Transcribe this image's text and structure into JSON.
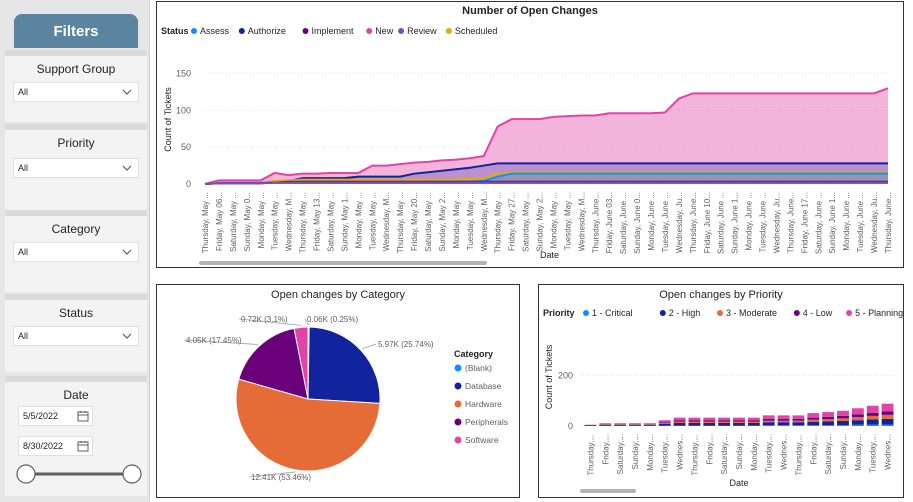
{
  "filters": {
    "header": "Filters",
    "support_group": {
      "label": "Support Group",
      "value": "All"
    },
    "priority": {
      "label": "Priority",
      "value": "All"
    },
    "category": {
      "label": "Category",
      "value": "All"
    },
    "status": {
      "label": "Status",
      "value": "All"
    },
    "date": {
      "label": "Date",
      "start": "5/5/2022",
      "end": "8/30/2022",
      "range_fraction": [
        0.0,
        1.0
      ]
    }
  },
  "open_changes": {
    "chart_data": {
      "type": "area",
      "title": "Number of Open Changes",
      "xlabel": "Date",
      "ylabel": "Count of Tickets",
      "legend_title": "Status",
      "legend_position": "top-left",
      "yticks": [
        "0",
        "50",
        "100",
        "150"
      ],
      "ylim": [
        0,
        175
      ],
      "x_tick_labels": [
        "Thursday, May ...",
        "Friday, May 06...",
        "Saturday, May ...",
        "Sunday, May 0...",
        "Monday, May ...",
        "Tuesday, May ...",
        "Wednesday, M...",
        "Thursday, May ...",
        "Friday, May 13...",
        "Saturday, May ...",
        "Sunday, May 1...",
        "Monday, May ...",
        "Tuesday, May ...",
        "Wednesday, M...",
        "Thursday, May ...",
        "Friday, May 20...",
        "Saturday, May ...",
        "Sunday, May 2...",
        "Monday, May ...",
        "Tuesday, May ...",
        "Wednesday, M...",
        "Thursday, May ...",
        "Friday, May 27...",
        "Saturday, May ...",
        "Sunday, May 2...",
        "Monday, May ...",
        "Tuesday, May ...",
        "Wednesday, M...",
        "Thursday, June...",
        "Friday, June 03...",
        "Saturday, June ...",
        "Sunday, June 0...",
        "Monday, June ...",
        "Tuesday, June ...",
        "Wednesday, Ju...",
        "Thursday, June...",
        "Friday, June 10...",
        "Saturday, June ...",
        "Sunday, June 1...",
        "Monday, June ...",
        "Tuesday, June ...",
        "Wednesday, Ju...",
        "Thursday, June...",
        "Friday, June 17...",
        "Saturday, June ...",
        "Sunday, June 1...",
        "Monday, June ...",
        "Tuesday, June ...",
        "Wednesday, Ju...",
        "Thursday, June..."
      ],
      "series": [
        {
          "name": "Assess",
          "color": "#118dff",
          "values": [
            0,
            1,
            1,
            1,
            1,
            2,
            2,
            2,
            2,
            2,
            2,
            2,
            2,
            2,
            2,
            2,
            3,
            3,
            3,
            3,
            4,
            10,
            14,
            14,
            14,
            14,
            14,
            14,
            14,
            14,
            14,
            14,
            14,
            14,
            14,
            14,
            14,
            14,
            14,
            14,
            14,
            14,
            14,
            14,
            14,
            14,
            14,
            14,
            14,
            14
          ]
        },
        {
          "name": "Authorize",
          "color": "#12239e",
          "values": [
            0,
            2,
            2,
            2,
            2,
            3,
            4,
            8,
            8,
            8,
            8,
            10,
            10,
            10,
            10,
            14,
            16,
            18,
            20,
            22,
            25,
            28,
            28,
            28,
            28,
            28,
            28,
            28,
            28,
            28,
            28,
            28,
            28,
            28,
            28,
            28,
            28,
            28,
            28,
            28,
            28,
            28,
            28,
            28,
            28,
            28,
            28,
            28,
            28,
            28
          ]
        },
        {
          "name": "Implement",
          "color": "#6b007b",
          "values": [
            0,
            1,
            1,
            1,
            1,
            2,
            3,
            3,
            3,
            3,
            3,
            3,
            3,
            3,
            3,
            3,
            3,
            3,
            3,
            3,
            3,
            3,
            3,
            3,
            3,
            3,
            3,
            3,
            3,
            3,
            3,
            3,
            3,
            3,
            3,
            3,
            3,
            3,
            3,
            3,
            3,
            3,
            3,
            3,
            3,
            3,
            3,
            3,
            3,
            3
          ]
        },
        {
          "name": "New",
          "color": "#e044a7",
          "values": [
            0,
            5,
            5,
            5,
            5,
            15,
            12,
            14,
            14,
            15,
            15,
            15,
            25,
            25,
            27,
            29,
            30,
            32,
            33,
            35,
            38,
            78,
            88,
            88,
            88,
            91,
            92,
            93,
            93,
            96,
            96,
            96,
            96,
            97,
            116,
            123,
            123,
            123,
            123,
            123,
            123,
            123,
            123,
            123,
            123,
            123,
            123,
            123,
            123,
            130
          ]
        },
        {
          "name": "Review",
          "color": "#744ec2",
          "values": [
            0,
            1,
            1,
            1,
            1,
            2,
            2,
            2,
            2,
            2,
            2,
            2,
            2,
            2,
            2,
            2,
            2,
            2,
            2,
            2,
            2,
            2,
            2,
            2,
            2,
            2,
            2,
            2,
            2,
            2,
            2,
            2,
            2,
            2,
            2,
            2,
            2,
            2,
            2,
            2,
            2,
            2,
            2,
            2,
            2,
            2,
            2,
            2,
            2,
            2
          ]
        },
        {
          "name": "Scheduled",
          "color": "#d9b300",
          "values": [
            0,
            2,
            2,
            2,
            2,
            4,
            5,
            6,
            6,
            6,
            6,
            6,
            6,
            6,
            6,
            6,
            6,
            6,
            6,
            7,
            8,
            14,
            15,
            15,
            15,
            15,
            15,
            15,
            15,
            15,
            15,
            15,
            15,
            15,
            15,
            15,
            15,
            15,
            15,
            15,
            15,
            15,
            15,
            15,
            15,
            15,
            15,
            15,
            15,
            15
          ]
        }
      ]
    }
  },
  "category_pie": {
    "chart_data": {
      "type": "pie",
      "title": "Open changes by Category",
      "legend_title": "Category",
      "legend_position": "right",
      "slices": [
        {
          "name": "(Blank)",
          "value": 0.06,
          "label": "0.06K (0.25%)",
          "color": "#118dff"
        },
        {
          "name": "Database",
          "value": 5.97,
          "label": "5.97K (25.74%)",
          "color": "#12239e"
        },
        {
          "name": "Hardware",
          "value": 12.41,
          "label": "12.41K (53.46%)",
          "color": "#e66c37"
        },
        {
          "name": "Peripherals",
          "value": 4.05,
          "label": "4.05K (17.45%)",
          "color": "#6b007b"
        },
        {
          "name": "Software",
          "value": 0.72,
          "label": "0.72K (3.1%)",
          "color": "#e044a7"
        }
      ]
    }
  },
  "priority_bar": {
    "chart_data": {
      "type": "bar",
      "stacked": true,
      "title": "Open changes by Priority",
      "xlabel": "Date",
      "ylabel": "Count of Tickets",
      "legend_title": "Priority",
      "legend_position": "top-left",
      "yticks": [
        "0",
        "200"
      ],
      "ylim": [
        0,
        320
      ],
      "categories": [
        "Thursday,...",
        "Friday,...",
        "Saturday,...",
        "Sunday,...",
        "Monday,...",
        "Tuesday,...",
        "Wednes...",
        "Thursday,...",
        "Friday,...",
        "Saturday,...",
        "Sunday,...",
        "Monday,...",
        "Tuesday,...",
        "Wednes...",
        "Thursday,...",
        "Friday,...",
        "Saturday,...",
        "Sunday,...",
        "Monday,...",
        "Tuesday,...",
        "Wednes..."
      ],
      "series": [
        {
          "name": "1 - Critical",
          "color": "#118dff",
          "values": [
            0,
            1,
            1,
            1,
            1,
            1,
            2,
            2,
            2,
            2,
            2,
            2,
            3,
            3,
            3,
            3,
            4,
            4,
            5,
            6,
            6
          ]
        },
        {
          "name": "2 - High",
          "color": "#12239e",
          "values": [
            2,
            4,
            4,
            4,
            4,
            8,
            10,
            10,
            10,
            10,
            10,
            10,
            12,
            12,
            12,
            14,
            14,
            16,
            18,
            20,
            22
          ]
        },
        {
          "name": "3 - Moderate",
          "color": "#e66c37",
          "values": [
            1,
            2,
            2,
            2,
            2,
            4,
            5,
            5,
            5,
            5,
            5,
            5,
            6,
            6,
            6,
            8,
            9,
            10,
            12,
            14,
            16
          ]
        },
        {
          "name": "4 - Low",
          "color": "#6b007b",
          "values": [
            1,
            2,
            2,
            2,
            2,
            4,
            6,
            6,
            6,
            6,
            6,
            6,
            7,
            7,
            7,
            8,
            9,
            10,
            11,
            12,
            14
          ]
        },
        {
          "name": "5 - Planning",
          "color": "#e044a7",
          "values": [
            1,
            2,
            2,
            2,
            2,
            6,
            10,
            10,
            10,
            10,
            10,
            10,
            14,
            14,
            14,
            18,
            19,
            20,
            24,
            28,
            30
          ]
        }
      ]
    }
  }
}
